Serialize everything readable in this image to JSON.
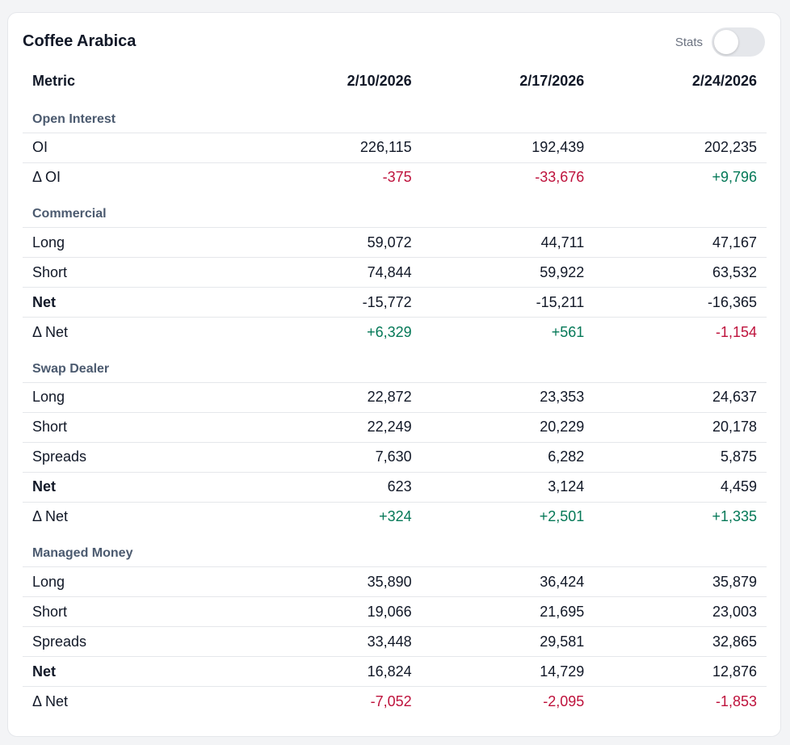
{
  "card": {
    "title": "Coffee Arabica",
    "stats_label": "Stats",
    "stats_toggle_on": false
  },
  "table": {
    "headers": [
      "Metric",
      "2/10/2026",
      "2/17/2026",
      "2/24/2026"
    ],
    "sections": [
      {
        "name": "Open Interest",
        "rows": [
          {
            "label": "OI",
            "values": [
              "226,115",
              "192,439",
              "202,235"
            ]
          },
          {
            "label": "Δ OI",
            "values": [
              "-375",
              "-33,676",
              "+9,796"
            ]
          }
        ]
      },
      {
        "name": "Commercial",
        "rows": [
          {
            "label": "Long",
            "values": [
              "59,072",
              "44,711",
              "47,167"
            ]
          },
          {
            "label": "Short",
            "values": [
              "74,844",
              "59,922",
              "63,532"
            ]
          },
          {
            "label": "Net",
            "values": [
              "-15,772",
              "-15,211",
              "-16,365"
            ]
          },
          {
            "label": "Δ Net",
            "values": [
              "+6,329",
              "+561",
              "-1,154"
            ]
          }
        ]
      },
      {
        "name": "Swap Dealer",
        "rows": [
          {
            "label": "Long",
            "values": [
              "22,872",
              "23,353",
              "24,637"
            ]
          },
          {
            "label": "Short",
            "values": [
              "22,249",
              "20,229",
              "20,178"
            ]
          },
          {
            "label": "Spreads",
            "values": [
              "7,630",
              "6,282",
              "5,875"
            ]
          },
          {
            "label": "Net",
            "values": [
              "623",
              "3,124",
              "4,459"
            ]
          },
          {
            "label": "Δ Net",
            "values": [
              "+324",
              "+2,501",
              "+1,335"
            ]
          }
        ]
      },
      {
        "name": "Managed Money",
        "rows": [
          {
            "label": "Long",
            "values": [
              "35,890",
              "36,424",
              "35,879"
            ]
          },
          {
            "label": "Short",
            "values": [
              "19,066",
              "21,695",
              "23,003"
            ]
          },
          {
            "label": "Spreads",
            "values": [
              "33,448",
              "29,581",
              "32,865"
            ]
          },
          {
            "label": "Net",
            "values": [
              "16,824",
              "14,729",
              "12,876"
            ]
          },
          {
            "label": "Δ Net",
            "values": [
              "-7,052",
              "-2,095",
              "-1,853"
            ]
          }
        ]
      }
    ]
  },
  "colors": {
    "positive": "#047857",
    "negative": "#be123c",
    "section_label": "#4b5a6f"
  }
}
